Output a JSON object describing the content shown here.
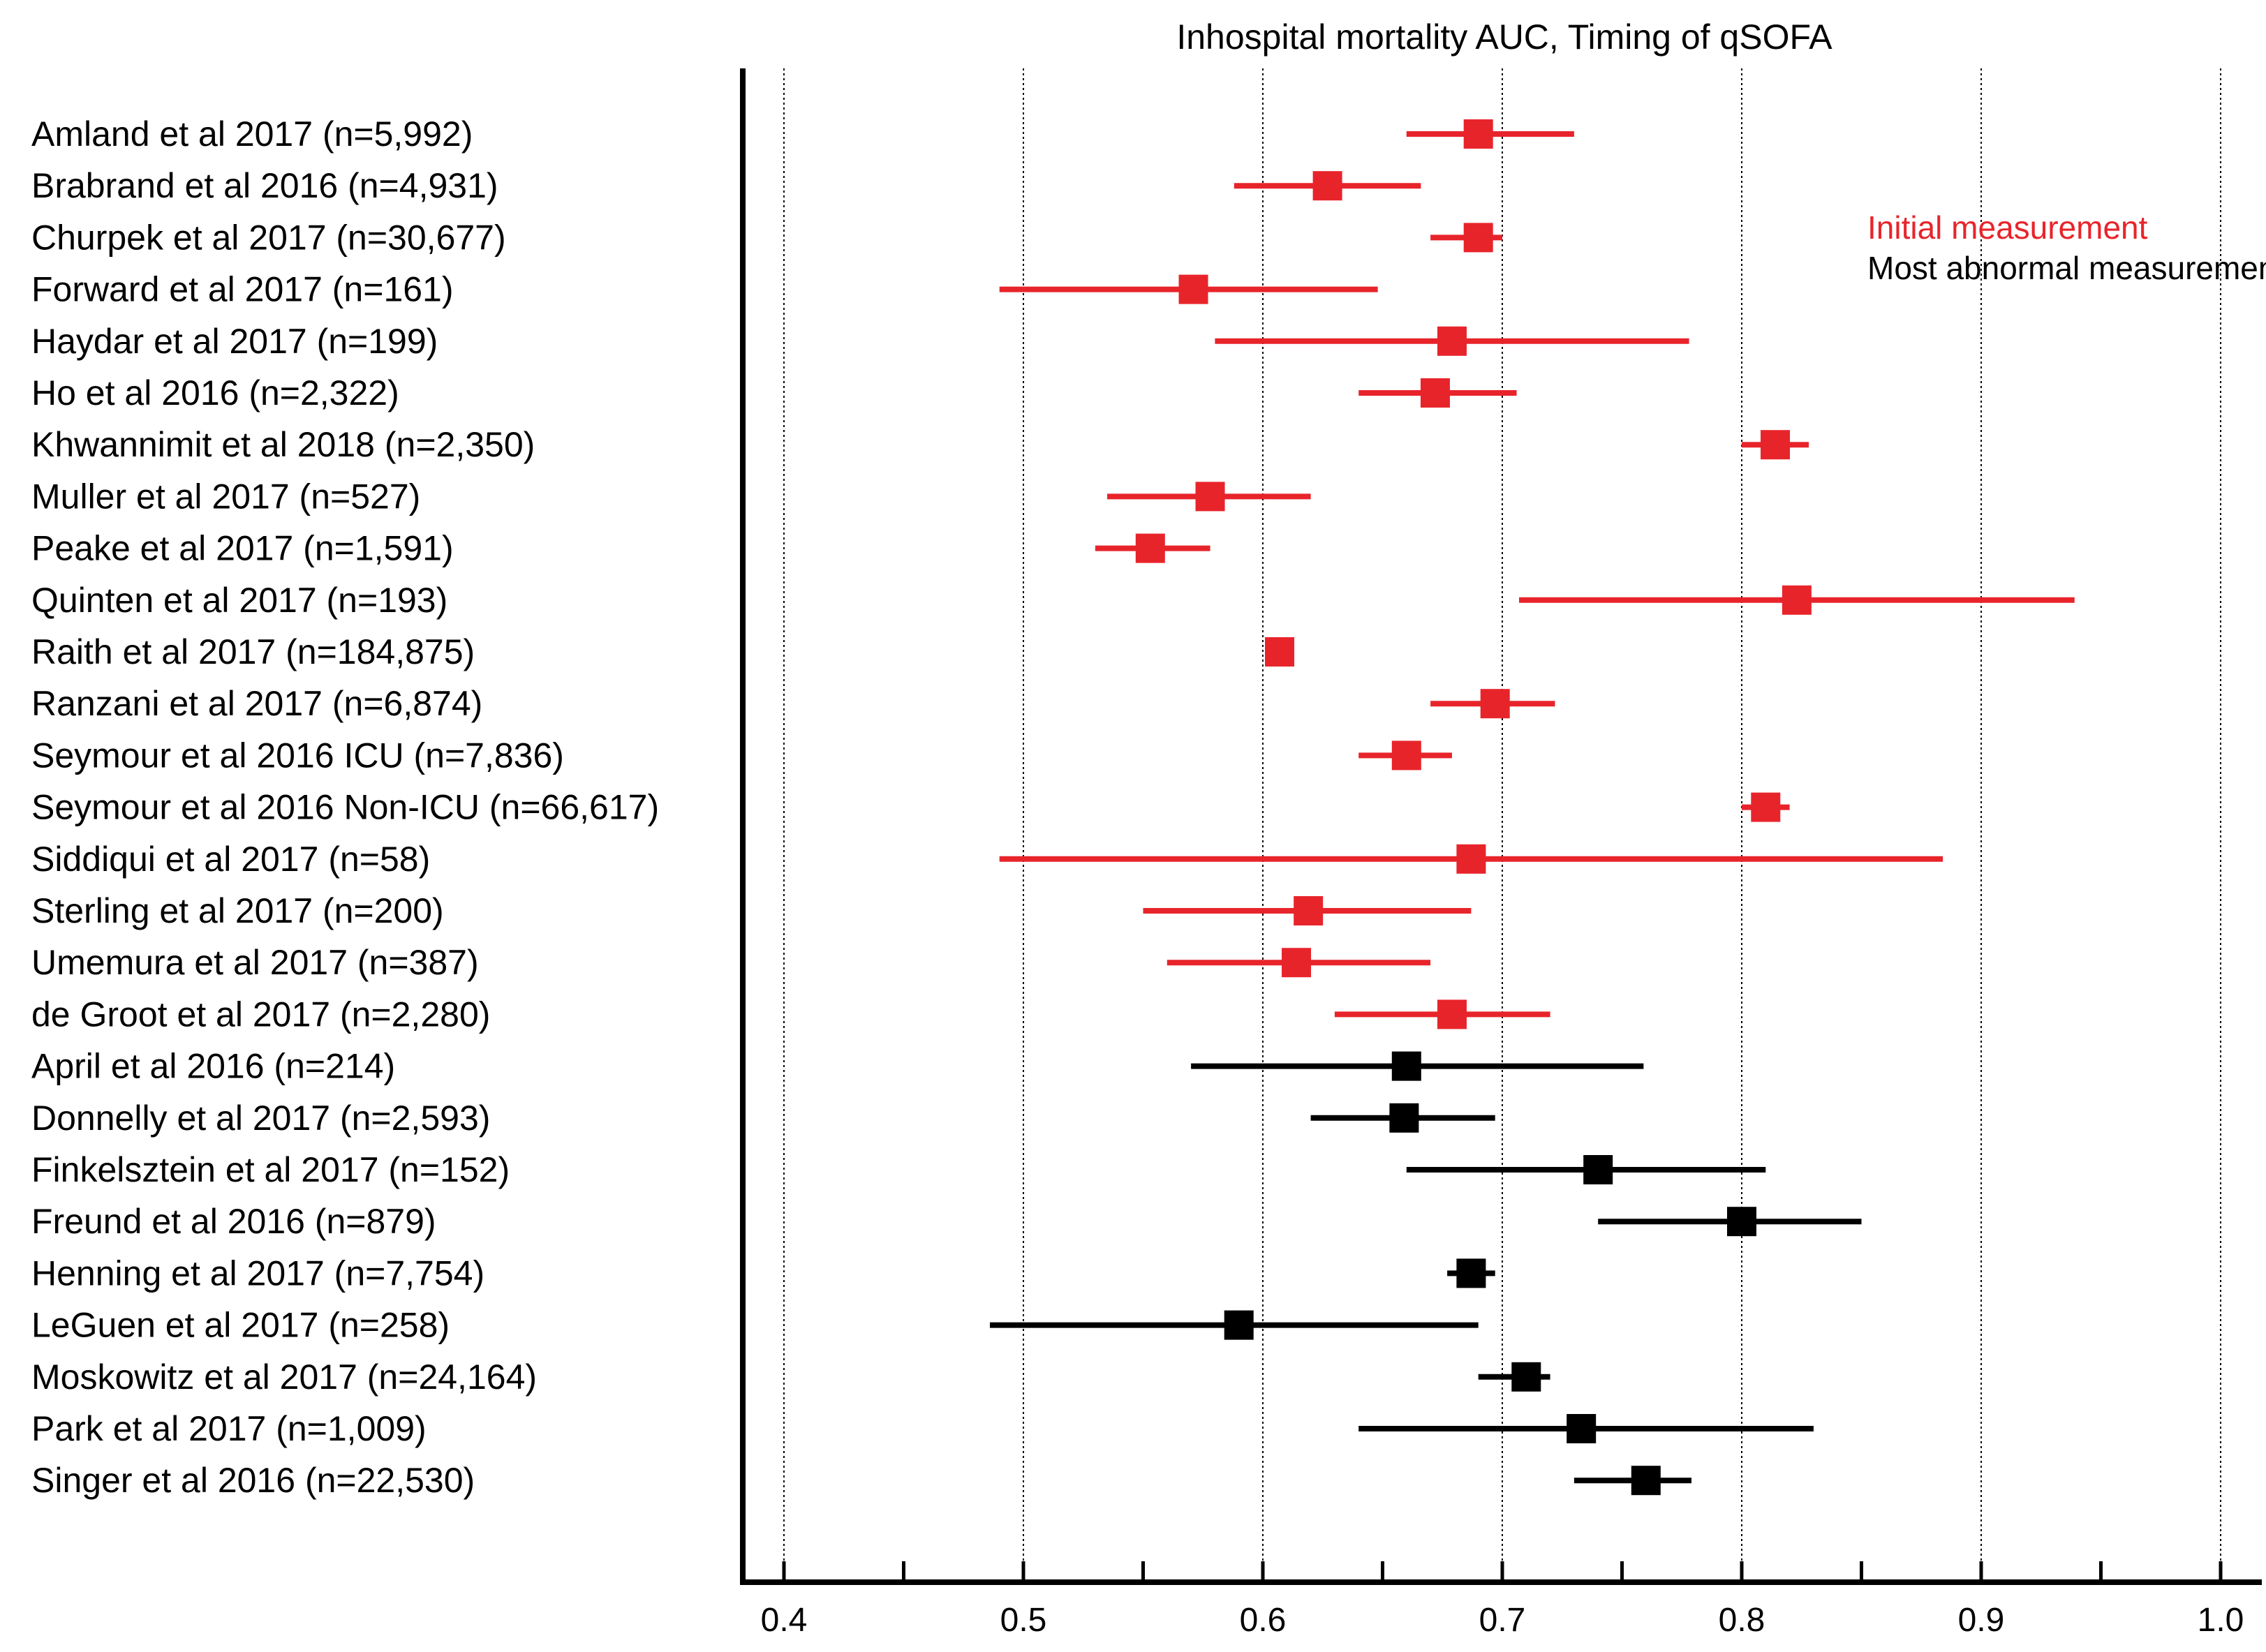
{
  "chart_data": {
    "type": "forest",
    "title": "Inhospital mortality AUC, Timing of qSOFA",
    "xlim": [
      0.38,
      1.02
    ],
    "xticks": [
      "0.4",
      "0.5",
      "0.6",
      "0.7",
      "0.8",
      "0.9",
      "1.0"
    ],
    "xtick_values": [
      0.4,
      0.5,
      0.6,
      0.7,
      0.8,
      0.9,
      1.0
    ],
    "minor_tick_step": 0.05,
    "grid": "vertical dotted at major ticks",
    "legend": {
      "placement": "top-right",
      "entries": [
        {
          "name": "Initial measurement",
          "color": "#e8242b"
        },
        {
          "name": "Most abnormal measurement",
          "color": "#000000"
        }
      ]
    },
    "series": [
      {
        "name": "Initial measurement",
        "color": "#e8242b",
        "studies": [
          {
            "label": "Amland et al 2017 (n=5,992)",
            "auc": 0.69,
            "lo": 0.66,
            "hi": 0.73
          },
          {
            "label": "Brabrand et al 2016 (n=4,931)",
            "auc": 0.627,
            "lo": 0.588,
            "hi": 0.666
          },
          {
            "label": "Churpek et al 2017 (n=30,677)",
            "auc": 0.69,
            "lo": 0.67,
            "hi": 0.7
          },
          {
            "label": "Forward et al 2017 (n=161)",
            "auc": 0.571,
            "lo": 0.49,
            "hi": 0.648
          },
          {
            "label": "Haydar et al 2017 (n=199)",
            "auc": 0.679,
            "lo": 0.58,
            "hi": 0.778
          },
          {
            "label": "Ho et al 2016 (n=2,322)",
            "auc": 0.672,
            "lo": 0.64,
            "hi": 0.706
          },
          {
            "label": "Khwannimit et al 2018 (n=2,350)",
            "auc": 0.814,
            "lo": 0.8,
            "hi": 0.828
          },
          {
            "label": "Muller et al 2017 (n=527)",
            "auc": 0.578,
            "lo": 0.535,
            "hi": 0.62
          },
          {
            "label": "Peake et al 2017 (n=1,591)",
            "auc": 0.553,
            "lo": 0.53,
            "hi": 0.578
          },
          {
            "label": "Quinten et al 2017 (n=193)",
            "auc": 0.823,
            "lo": 0.707,
            "hi": 0.939
          },
          {
            "label": "Raith et al 2017 (n=184,875)",
            "auc": 0.607,
            "lo": 0.601,
            "hi": 0.613
          },
          {
            "label": "Ranzani et al 2017 (n=6,874)",
            "auc": 0.697,
            "lo": 0.67,
            "hi": 0.722
          },
          {
            "label": "Seymour et al 2016 ICU (n=7,836)",
            "auc": 0.66,
            "lo": 0.64,
            "hi": 0.679
          },
          {
            "label": "Seymour et al 2016 Non-ICU (n=66,617)",
            "auc": 0.81,
            "lo": 0.8,
            "hi": 0.82
          },
          {
            "label": "Siddiqui et al 2017 (n=58)",
            "auc": 0.687,
            "lo": 0.49,
            "hi": 0.884
          },
          {
            "label": "Sterling et al 2017 (n=200)",
            "auc": 0.619,
            "lo": 0.55,
            "hi": 0.687
          },
          {
            "label": "Umemura et al 2017 (n=387)",
            "auc": 0.614,
            "lo": 0.56,
            "hi": 0.67
          },
          {
            "label": "de Groot et al 2017 (n=2,280)",
            "auc": 0.679,
            "lo": 0.63,
            "hi": 0.72
          }
        ]
      },
      {
        "name": "Most abnormal measurement",
        "color": "#000000",
        "studies": [
          {
            "label": "April et al 2016 (n=214)",
            "auc": 0.66,
            "lo": 0.57,
            "hi": 0.759
          },
          {
            "label": "Donnelly et al 2017 (n=2,593)",
            "auc": 0.659,
            "lo": 0.62,
            "hi": 0.697
          },
          {
            "label": "Finkelsztein et al 2017 (n=152)",
            "auc": 0.74,
            "lo": 0.66,
            "hi": 0.81
          },
          {
            "label": "Freund et al 2016 (n=879)",
            "auc": 0.8,
            "lo": 0.74,
            "hi": 0.85
          },
          {
            "label": "Henning et al 2017 (n=7,754)",
            "auc": 0.687,
            "lo": 0.677,
            "hi": 0.697
          },
          {
            "label": "LeGuen et al 2017 (n=258)",
            "auc": 0.59,
            "lo": 0.486,
            "hi": 0.69
          },
          {
            "label": "Moskowitz et al 2017 (n=24,164)",
            "auc": 0.71,
            "lo": 0.69,
            "hi": 0.72
          },
          {
            "label": "Park et al 2017 (n=1,009)",
            "auc": 0.733,
            "lo": 0.64,
            "hi": 0.83
          },
          {
            "label": "Singer et al 2016 (n=22,530)",
            "auc": 0.76,
            "lo": 0.73,
            "hi": 0.779
          }
        ]
      }
    ]
  }
}
